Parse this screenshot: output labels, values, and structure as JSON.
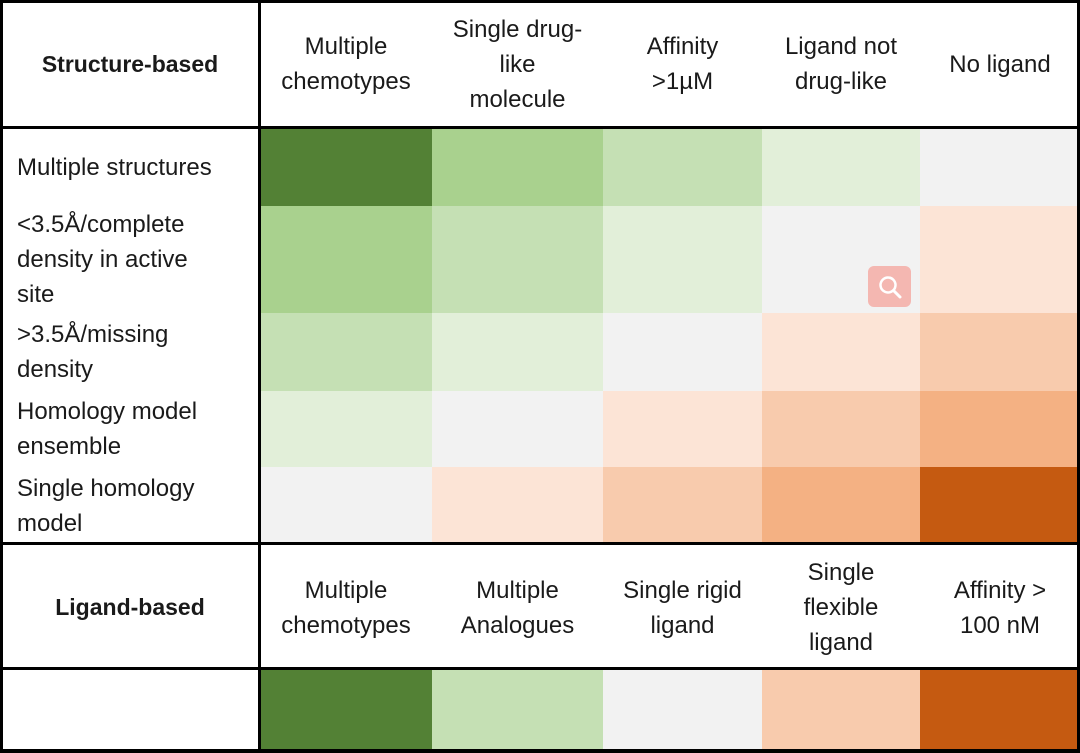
{
  "structure_based": {
    "title": "Structure-based",
    "columns": [
      "Multiple\nchemotypes",
      "Single drug-\nlike\nmolecule",
      "Affinity\n>1µM",
      "Ligand not\ndrug-like",
      "No ligand"
    ],
    "rows": [
      {
        "label": "Multiple structures",
        "colors": [
          "#538135",
          "#a9d18e",
          "#c5e0b4",
          "#e2efd9",
          "#f2f2f2"
        ]
      },
      {
        "label": "<3.5Å/complete\ndensity in active\nsite",
        "colors": [
          "#a9d18e",
          "#c5e0b4",
          "#e2efd9",
          "#f2f2f2",
          "#fce4d6"
        ]
      },
      {
        "label": ">3.5Å/missing\ndensity",
        "colors": [
          "#c5e0b4",
          "#e2efd9",
          "#f2f2f2",
          "#fce4d6",
          "#f8cbad"
        ]
      },
      {
        "label": "Homology model\nensemble",
        "colors": [
          "#e2efd9",
          "#f2f2f2",
          "#fce4d6",
          "#f8cbad",
          "#f4b183"
        ]
      },
      {
        "label": "Single homology\nmodel",
        "colors": [
          "#f2f2f2",
          "#fce4d6",
          "#f8cbad",
          "#f4b183",
          "#c55a11"
        ]
      }
    ]
  },
  "ligand_based": {
    "title": "Ligand-based",
    "columns": [
      "Multiple\nchemotypes",
      "Multiple\nAnalogues",
      "Single rigid\nligand",
      "Single\nflexible\nligand",
      "Affinity >\n100 nM"
    ],
    "row": {
      "label": "",
      "colors": [
        "#538135",
        "#c5e0b4",
        "#f2f2f2",
        "#f8cbad",
        "#c55a11"
      ]
    }
  },
  "icons": {
    "zoom": "magnifier-icon"
  }
}
